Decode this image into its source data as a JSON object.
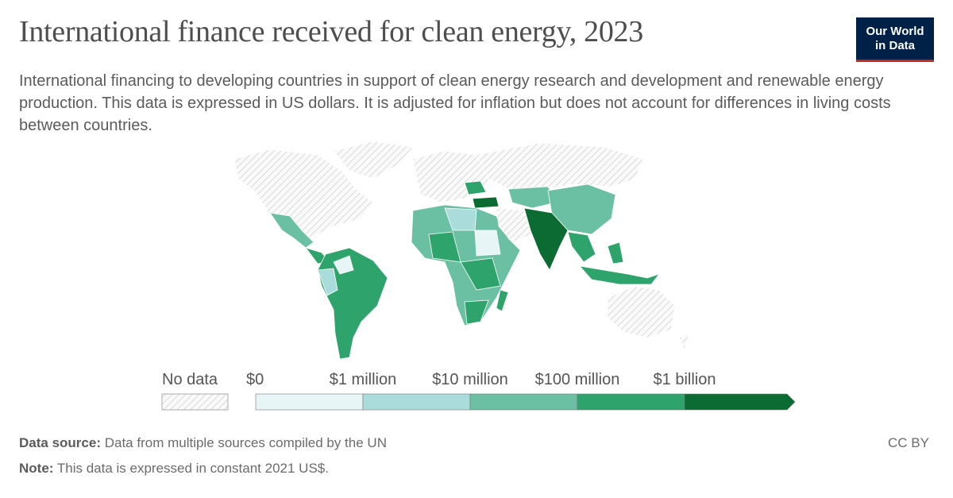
{
  "header": {
    "title": "International finance received for clean energy, 2023",
    "subtitle": "International financing to developing countries in support of clean energy research and development and renewable energy production. This data is expressed in US dollars. It is adjusted for inflation but does not account for differences in living costs between countries.",
    "logo": [
      "Our World",
      "in Data"
    ]
  },
  "legend": {
    "no_data": "No data",
    "labels": [
      "$0",
      "$1 million",
      "$10 million",
      "$100 million",
      "$1 billion"
    ],
    "colors": [
      "#e8f5f6",
      "#abdcdc",
      "#6bc0a3",
      "#2ea36b",
      "#0b6b32"
    ]
  },
  "footer": {
    "source_label": "Data source:",
    "source": "Data from multiple sources compiled by the UN",
    "note_label": "Note:",
    "note": "This data is expressed in constant 2021 US$.",
    "license": "CC BY"
  }
}
